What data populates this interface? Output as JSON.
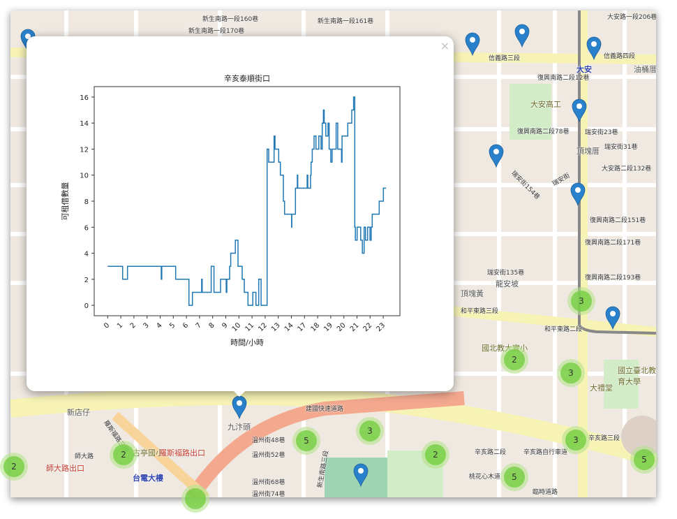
{
  "map": {
    "labels": [
      "信義路三段",
      "信義路四段",
      "大安",
      "復興南路二段12巷",
      "大安高工",
      "復興南路二段78巷",
      "瑞安街23巷",
      "瑞安街31巷",
      "大安路二段132巷",
      "瑞安街",
      "瑞安街154巷",
      "復興南路二段151巷",
      "復興南路二段171巷",
      "瑞安街135巷",
      "龍安坡",
      "頂塊黃",
      "復興南路二段193巷",
      "和平東路三段",
      "和平東路二段",
      "國北教大實小",
      "國立臺北教育大學",
      "大禮堂",
      "辛亥路二段",
      "辛亥路三段",
      "辛亥路自行車道",
      "桃花心木道",
      "臨時道路",
      "建國快速道路",
      "新店仔",
      "羅斯福路三段",
      "古亭國小",
      "羅斯福路出口",
      "師大路",
      "師大路出口",
      "台電大樓",
      "九汴頭",
      "溫州街48巷",
      "溫州街52巷",
      "溫州街68巷",
      "溫州街74巷",
      "新生南路三段",
      "大安路一段206巷",
      "油桶厝",
      "頂塊厝",
      "新生南路一段160巷",
      "新生南路一段161巷",
      "新生南路一段170巷"
    ],
    "clusters": [
      3,
      2,
      3,
      3,
      5,
      5,
      2,
      3,
      5,
      2,
      2
    ],
    "marker_color": "#2a81cb",
    "cluster_color": "#6ecc39"
  },
  "popup": {
    "close_label": "×"
  },
  "chart_data": {
    "type": "line",
    "title": "辛亥泰順街口",
    "xlabel": "時間/小時",
    "ylabel": "可租借數量",
    "xticks": [
      0,
      1,
      2,
      3,
      4,
      5,
      6,
      7,
      8,
      9,
      10,
      11,
      12,
      13,
      14,
      17,
      18,
      19,
      20,
      21,
      22,
      23
    ],
    "yticks": [
      0,
      2,
      4,
      6,
      8,
      10,
      12,
      14,
      16
    ],
    "ylim": [
      -0.8,
      16.8
    ],
    "grid": false,
    "color": "#1f77b4",
    "step": "post",
    "points": [
      [
        0,
        3
      ],
      [
        1.14,
        2
      ],
      [
        1.51,
        3
      ],
      [
        4.08,
        2
      ],
      [
        4.12,
        3
      ],
      [
        5.18,
        2
      ],
      [
        6.19,
        0
      ],
      [
        6.46,
        1
      ],
      [
        7.16,
        2
      ],
      [
        7.2,
        1
      ],
      [
        7.89,
        3
      ],
      [
        8.1,
        1
      ],
      [
        8.6,
        2
      ],
      [
        9.03,
        1
      ],
      [
        9.08,
        2
      ],
      [
        9.29,
        3
      ],
      [
        9.38,
        4
      ],
      [
        9.73,
        5
      ],
      [
        9.93,
        3
      ],
      [
        10.25,
        2
      ],
      [
        10.41,
        1
      ],
      [
        10.69,
        0
      ],
      [
        11.06,
        1
      ],
      [
        11.3,
        0
      ],
      [
        11.51,
        2
      ],
      [
        11.69,
        0
      ],
      [
        12.15,
        12
      ],
      [
        12.27,
        11
      ],
      [
        12.68,
        13
      ],
      [
        12.75,
        12
      ],
      [
        13.03,
        11
      ],
      [
        13.16,
        10
      ],
      [
        13.39,
        8
      ],
      [
        13.48,
        7
      ],
      [
        14.04,
        6
      ],
      [
        14.1,
        7
      ],
      [
        14.93,
        9
      ],
      [
        15.35,
        10
      ],
      [
        15.45,
        9
      ],
      [
        17.2,
        10
      ],
      [
        17.25,
        9
      ],
      [
        17.46,
        10
      ],
      [
        17.5,
        11
      ],
      [
        17.59,
        12
      ],
      [
        17.73,
        13
      ],
      [
        17.87,
        12
      ],
      [
        18.09,
        13
      ],
      [
        18.26,
        12
      ],
      [
        18.35,
        14
      ],
      [
        18.44,
        15
      ],
      [
        18.5,
        14
      ],
      [
        18.62,
        13
      ],
      [
        18.79,
        14
      ],
      [
        18.88,
        12
      ],
      [
        19.0,
        11
      ],
      [
        19.1,
        12
      ],
      [
        19.41,
        14
      ],
      [
        19.53,
        12
      ],
      [
        19.82,
        11
      ],
      [
        19.86,
        13
      ],
      [
        20.3,
        14
      ],
      [
        20.6,
        15
      ],
      [
        20.74,
        16
      ],
      [
        20.83,
        6
      ],
      [
        20.88,
        5
      ],
      [
        21.01,
        6
      ],
      [
        21.28,
        5
      ],
      [
        21.41,
        4
      ],
      [
        21.54,
        6
      ],
      [
        21.65,
        5
      ],
      [
        21.81,
        6
      ],
      [
        21.99,
        5
      ],
      [
        22.08,
        6
      ],
      [
        22.16,
        7
      ],
      [
        22.69,
        8
      ],
      [
        23.01,
        9
      ],
      [
        23.22,
        9
      ]
    ]
  }
}
